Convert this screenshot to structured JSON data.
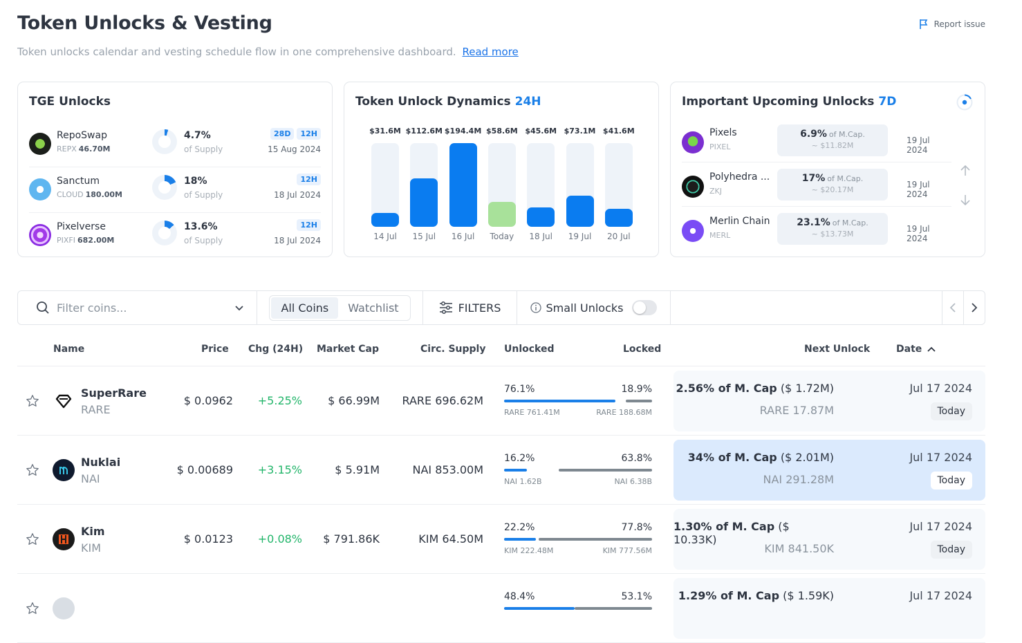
{
  "header": {
    "title": "Token Unlocks & Vesting",
    "subtitle": "Token unlocks calendar and vesting schedule flow in one comprehensive dashboard.",
    "read_more": "Read more",
    "report_issue": "Report issue"
  },
  "tge": {
    "title": "TGE Unlocks",
    "items": [
      {
        "name": "RepoSwap",
        "symbol": "REPX",
        "amount": "46.70M",
        "pct": "4.7%",
        "of_supply": "of Supply",
        "pct_value": 0.047,
        "badges": [
          "28D",
          "12H"
        ],
        "date": "15 Aug 2024"
      },
      {
        "name": "Sanctum",
        "symbol": "CLOUD",
        "amount": "180.00M",
        "pct": "18%",
        "of_supply": "of Supply",
        "pct_value": 0.18,
        "badges": [
          "12H"
        ],
        "date": "18 Jul 2024"
      },
      {
        "name": "Pixelverse",
        "symbol": "PIXFI",
        "amount": "682.00M",
        "pct": "13.6%",
        "of_supply": "of Supply",
        "pct_value": 0.136,
        "badges": [
          "12H"
        ],
        "date": "18 Jul 2024"
      }
    ]
  },
  "dynamics": {
    "title": "Token Unlock Dynamics",
    "period": "24H"
  },
  "chart_data": {
    "type": "bar",
    "categories": [
      "14 Jul",
      "15 Jul",
      "16 Jul",
      "Today",
      "18 Jul",
      "19 Jul",
      "20 Jul"
    ],
    "values": [
      31.6,
      112.6,
      194.4,
      58.6,
      45.6,
      73.1,
      41.6
    ],
    "labels": [
      "$31.6M",
      "$112.6M",
      "$194.4M",
      "$58.6M",
      "$45.6M",
      "$73.1M",
      "$41.6M"
    ],
    "highlight_index": 3,
    "colors": {
      "bar": "#0a7cf0",
      "today": "#a8e19a",
      "track": "#eef3f9"
    },
    "ylim": [
      0,
      194.4
    ],
    "title": "",
    "xlabel": "",
    "ylabel": ""
  },
  "upcoming": {
    "title": "Important Upcoming Unlocks",
    "period": "7D",
    "items": [
      {
        "name": "Pixels",
        "symbol": "PIXEL",
        "pct": "6.9%",
        "of": "of M.Cap.",
        "value": "~ $11.82M",
        "date": "19 Jul 2024"
      },
      {
        "name": "Polyhedra ...",
        "symbol": "ZKJ",
        "pct": "17%",
        "of": "of M.Cap.",
        "value": "~ $20.17M",
        "date": "19 Jul 2024"
      },
      {
        "name": "Merlin Chain",
        "symbol": "MERL",
        "pct": "23.1%",
        "of": "of M.Cap.",
        "value": "~ $13.73M",
        "date": "19 Jul 2024"
      }
    ]
  },
  "filters": {
    "search_placeholder": "Filter coins...",
    "tab_all": "All Coins",
    "tab_watchlist": "Watchlist",
    "filters_label": "FILTERS",
    "small_unlocks": "Small Unlocks"
  },
  "table": {
    "headers": {
      "name": "Name",
      "price": "Price",
      "chg": "Chg (24H)",
      "mcap": "Market Cap",
      "circ": "Circ. Supply",
      "unlocked": "Unlocked",
      "locked": "Locked",
      "next": "Next Unlock",
      "date": "Date"
    },
    "rows": [
      {
        "name": "SuperRare",
        "symbol": "RARE",
        "price": "$ 0.0962",
        "chg": "+5.25%",
        "mcap": "$ 66.99M",
        "circ": "RARE 696.62M",
        "unlocked_pct": "76.1%",
        "locked_pct": "18.9%",
        "unlocked_val": 0.761,
        "locked_val": 0.189,
        "unlocked_amt": "RARE 761.41M",
        "locked_amt": "RARE 188.68M",
        "next_pct": "2.56% of M. Cap",
        "next_usd": "($ 1.72M)",
        "next_amt": "RARE 17.87M",
        "date": "Jul 17 2024",
        "when": "Today",
        "highlight": false
      },
      {
        "name": "Nuklai",
        "symbol": "NAI",
        "price": "$ 0.00689",
        "chg": "+3.15%",
        "mcap": "$ 5.91M",
        "circ": "NAI 853.00M",
        "unlocked_pct": "16.2%",
        "locked_pct": "63.8%",
        "unlocked_val": 0.162,
        "locked_val": 0.638,
        "unlocked_amt": "NAI 1.62B",
        "locked_amt": "NAI 6.38B",
        "next_pct": "34% of M. Cap",
        "next_usd": "($ 2.01M)",
        "next_amt": "NAI 291.28M",
        "date": "Jul 17 2024",
        "when": "Today",
        "highlight": true
      },
      {
        "name": "Kim",
        "symbol": "KIM",
        "price": "$ 0.0123",
        "chg": "+0.08%",
        "mcap": "$ 791.86K",
        "circ": "KIM 64.50M",
        "unlocked_pct": "22.2%",
        "locked_pct": "77.8%",
        "unlocked_val": 0.222,
        "locked_val": 0.778,
        "unlocked_amt": "KIM 222.48M",
        "locked_amt": "KIM 777.56M",
        "next_pct": "1.30% of M. Cap",
        "next_usd": "($ 10.33K)",
        "next_amt": "KIM 841.50K",
        "date": "Jul 17 2024",
        "when": "Today",
        "highlight": false
      },
      {
        "name": "",
        "symbol": "",
        "price": "",
        "chg": "",
        "mcap": "",
        "circ": "",
        "unlocked_pct": "48.4%",
        "locked_pct": "53.1%",
        "unlocked_val": 0.484,
        "locked_val": 0.531,
        "unlocked_amt": "",
        "locked_amt": "",
        "next_pct": "1.29% of M. Cap",
        "next_usd": "($ 1.59K)",
        "next_amt": "",
        "date": "Jul 17 2024",
        "when": "",
        "highlight": false
      }
    ]
  }
}
